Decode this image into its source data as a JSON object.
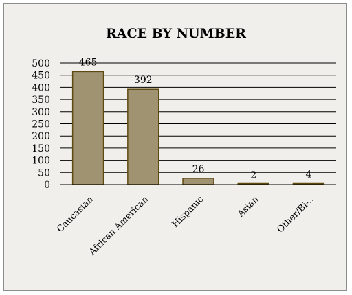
{
  "chart_data": {
    "type": "bar",
    "title": "RACE BY NUMBER",
    "xlabel": "",
    "ylabel": "",
    "categories": [
      "Caucasian",
      "African American",
      "Hispanic",
      "Asian",
      "Other/Bi-.."
    ],
    "values": [
      465,
      392,
      26,
      2,
      4
    ],
    "data_labels": [
      "465",
      "392",
      "26",
      "2",
      "4"
    ],
    "ylim": [
      0,
      500
    ],
    "yticks": [
      0,
      50,
      100,
      150,
      200,
      250,
      300,
      350,
      400,
      450,
      500
    ],
    "grid": true,
    "legend": "none",
    "bar_color": "#a09372",
    "bar_border_color": "#5e4a10",
    "grid_color": "#000000",
    "background_color": "#f1efeb"
  }
}
